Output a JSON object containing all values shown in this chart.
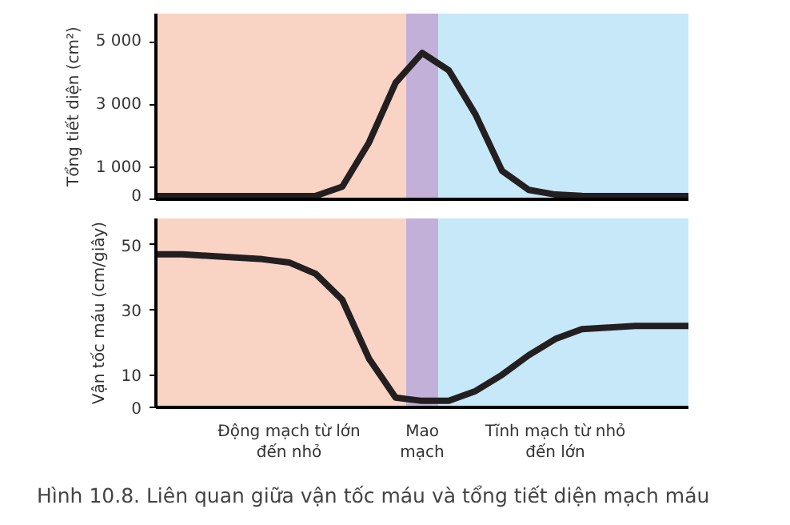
{
  "chart_data": [
    {
      "type": "line",
      "ylabel": "Tổng tiết diện (cm²)",
      "ylim": [
        0,
        5900
      ],
      "yticks": [
        0,
        {
          "value": 1000,
          "label": "1 000"
        },
        {
          "value": 3000,
          "label": "3 000"
        },
        {
          "value": 5000,
          "label": "5 000"
        }
      ],
      "tick_labels": "y",
      "categories": [
        null,
        null,
        null,
        null,
        null,
        null,
        null,
        null,
        null,
        null,
        null,
        null,
        null,
        null,
        null,
        null,
        null,
        null,
        null,
        null,
        null
      ],
      "series": [
        {
          "color": "#231f20",
          "values": [
            100,
            100,
            100,
            100,
            100,
            100,
            110,
            400,
            1800,
            3700,
            4650,
            4100,
            2700,
            900,
            300,
            150,
            110,
            100,
            100,
            100,
            100
          ]
        }
      ]
    },
    {
      "type": "line",
      "ylabel": "Vận tốc máu (cm/giây)",
      "ylim": [
        0,
        58
      ],
      "yticks": [
        0,
        10,
        30,
        50
      ],
      "categories": [
        null,
        null,
        null,
        null,
        null,
        "Động mạch từ lớn\nđến nhỏ",
        null,
        null,
        null,
        null,
        "Mao\nmạch",
        null,
        null,
        null,
        null,
        "Tĩnh mạch từ nhỏ\nđến lớn",
        null,
        null,
        null,
        null,
        null
      ],
      "series": [
        {
          "color": "#231f20",
          "values": [
            47,
            47,
            46.5,
            46,
            45.5,
            44.5,
            41,
            33,
            15,
            3,
            2,
            2,
            5,
            10,
            16,
            21,
            24,
            24.5,
            25,
            25,
            25
          ]
        }
      ],
      "annotations": [
        "Hình 10.8. Liên quan giữa vận tốc máu và tổng tiết diện mạch máu"
      ]
    }
  ]
}
